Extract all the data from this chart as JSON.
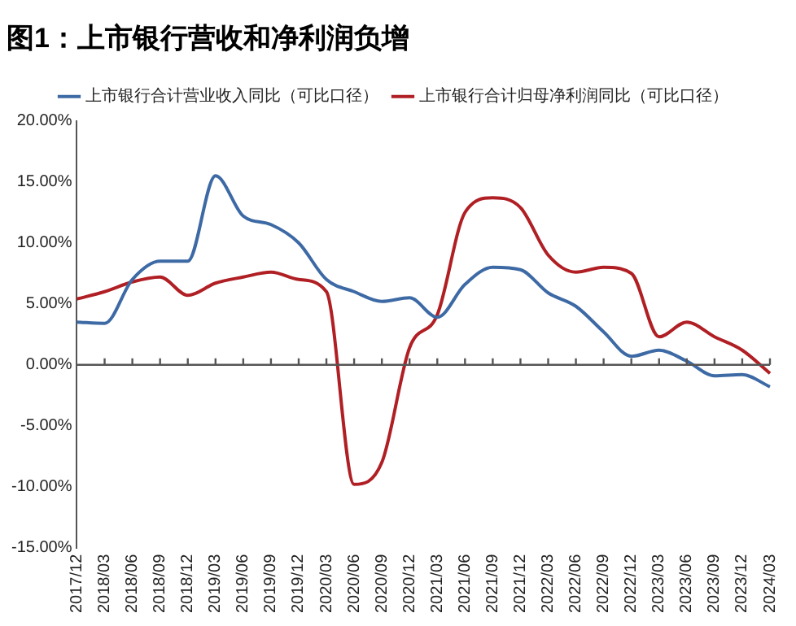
{
  "chart_data": {
    "type": "line",
    "title": "图1：上市银行营收和净利润负增",
    "categories": [
      "2017/12",
      "2018/03",
      "2018/06",
      "2018/09",
      "2018/12",
      "2019/03",
      "2019/06",
      "2019/09",
      "2019/12",
      "2020/03",
      "2020/06",
      "2020/09",
      "2020/12",
      "2021/03",
      "2021/06",
      "2021/09",
      "2021/12",
      "2022/03",
      "2022/06",
      "2022/09",
      "2022/12",
      "2023/03",
      "2023/06",
      "2023/09",
      "2023/12",
      "2024/03"
    ],
    "series": [
      {
        "name": "上市银行合计营业收入同比（可比口径）",
        "color": "#3d6aa5",
        "values": [
          3.5,
          3.4,
          7.0,
          8.5,
          8.5,
          15.5,
          12.2,
          11.5,
          10.0,
          7.0,
          6.0,
          5.2,
          5.5,
          3.9,
          6.6,
          8.0,
          7.8,
          5.9,
          4.8,
          2.7,
          0.7,
          1.2,
          0.3,
          -0.9,
          -0.8,
          -1.8
        ]
      },
      {
        "name": "上市银行合计归母净利润同比（可比口径）",
        "color": "#b01f24",
        "values": [
          5.4,
          6.0,
          6.8,
          7.2,
          5.7,
          6.7,
          7.2,
          7.6,
          7.0,
          6.0,
          -9.8,
          -8.0,
          1.4,
          4.1,
          12.5,
          13.7,
          12.9,
          9.0,
          7.6,
          8.0,
          7.5,
          2.3,
          3.5,
          2.3,
          1.2,
          -0.7
        ]
      }
    ],
    "ylim": [
      -15,
      20
    ],
    "yticks": [
      {
        "value": -15,
        "label": "-15.00%"
      },
      {
        "value": -10,
        "label": "-10.00%"
      },
      {
        "value": -5,
        "label": "-5.00%"
      },
      {
        "value": 0,
        "label": "0.00%"
      },
      {
        "value": 5,
        "label": "5.00%"
      },
      {
        "value": 10,
        "label": "10.00%"
      },
      {
        "value": 15,
        "label": "15.00%"
      },
      {
        "value": 20,
        "label": "20.00%"
      }
    ],
    "ref_lines": [
      {
        "axis": "y",
        "value": 0,
        "color": "#555555"
      }
    ],
    "grid": false,
    "legend": "top",
    "marker": "none",
    "line_style": "solid"
  }
}
